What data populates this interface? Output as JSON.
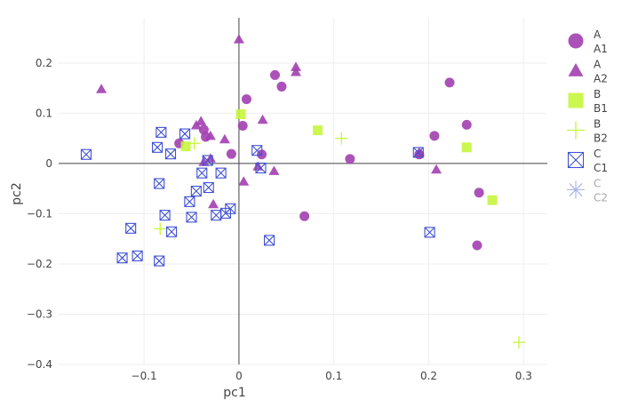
{
  "chart_data": {
    "type": "scatter",
    "title": "",
    "xlabel": "pc1",
    "ylabel": "pc2",
    "xlim": [
      -0.19,
      0.325
    ],
    "ylim": [
      -0.4,
      0.29
    ],
    "x_ticks": [
      -0.1,
      0,
      0.1,
      0.2,
      0.3
    ],
    "x_tick_labels": [
      "−0.1",
      "0",
      "0.1",
      "0.2",
      "0.3"
    ],
    "y_ticks": [
      -0.4,
      -0.3,
      -0.2,
      -0.1,
      0,
      0.1,
      0.2
    ],
    "y_tick_labels": [
      "−0.4",
      "−0.3",
      "−0.2",
      "−0.1",
      "0",
      "0.1",
      "0.2"
    ],
    "grid": true,
    "zero_lines": true,
    "legend_position": "right",
    "series": [
      {
        "name": "A A1",
        "group": "A",
        "subgroup": "A1",
        "symbol": "circle",
        "color": "#a23fb0",
        "legend_faded": false,
        "points": [
          [
            -0.063,
            0.04
          ],
          [
            -0.037,
            0.067
          ],
          [
            -0.035,
            0.053
          ],
          [
            -0.008,
            0.019
          ],
          [
            0.004,
            0.075
          ],
          [
            0.008,
            0.128
          ],
          [
            0.024,
            0.018
          ],
          [
            0.038,
            0.176
          ],
          [
            0.045,
            0.153
          ],
          [
            0.069,
            -0.105
          ],
          [
            0.117,
            0.009
          ],
          [
            0.19,
            0.018
          ],
          [
            0.206,
            0.055
          ],
          [
            0.222,
            0.161
          ],
          [
            0.24,
            0.077
          ],
          [
            0.253,
            -0.058
          ],
          [
            0.251,
            -0.163
          ]
        ]
      },
      {
        "name": "A A2",
        "group": "A",
        "subgroup": "A2",
        "symbol": "triangle-up",
        "color": "#a23fb0",
        "legend_faded": false,
        "points": [
          [
            -0.145,
            0.148
          ],
          [
            -0.045,
            0.076
          ],
          [
            -0.04,
            0.084
          ],
          [
            -0.037,
            0.003
          ],
          [
            -0.03,
            0.01
          ],
          [
            -0.03,
            0.055
          ],
          [
            -0.027,
            -0.081
          ],
          [
            -0.015,
            0.048
          ],
          [
            0,
            0.247
          ],
          [
            0.005,
            -0.036
          ],
          [
            0.02,
            -0.006
          ],
          [
            0.025,
            0.087
          ],
          [
            0.037,
            -0.015
          ],
          [
            0.06,
            0.192
          ],
          [
            0.06,
            0.182
          ],
          [
            0.19,
            0.022
          ],
          [
            0.208,
            -0.012
          ]
        ]
      },
      {
        "name": "B B1",
        "group": "B",
        "subgroup": "B1",
        "symbol": "square",
        "color": "#c6f53d",
        "legend_faded": false,
        "points": [
          [
            -0.056,
            0.034
          ],
          [
            0.002,
            0.098
          ],
          [
            0.083,
            0.066
          ],
          [
            0.24,
            0.032
          ],
          [
            0.267,
            -0.073
          ]
        ]
      },
      {
        "name": "B B2",
        "group": "B",
        "subgroup": "B2",
        "symbol": "cross",
        "color": "#c6f53d",
        "legend_faded": false,
        "points": [
          [
            -0.083,
            -0.13
          ],
          [
            -0.047,
            0.04
          ],
          [
            0.108,
            0.05
          ],
          [
            0.295,
            -0.356
          ]
        ]
      },
      {
        "name": "C C1",
        "group": "C",
        "subgroup": "C1",
        "symbol": "square-x",
        "color": "#3f51d4",
        "legend_faded": false,
        "points": [
          [
            -0.161,
            0.018
          ],
          [
            -0.123,
            -0.188
          ],
          [
            -0.114,
            -0.129
          ],
          [
            -0.107,
            -0.184
          ],
          [
            -0.086,
            0.032
          ],
          [
            -0.084,
            -0.04
          ],
          [
            -0.084,
            -0.194
          ],
          [
            -0.082,
            0.062
          ],
          [
            -0.078,
            -0.103
          ],
          [
            -0.072,
            0.019
          ],
          [
            -0.071,
            -0.136
          ],
          [
            -0.057,
            0.059
          ],
          [
            -0.052,
            -0.076
          ],
          [
            -0.05,
            -0.107
          ],
          [
            -0.045,
            -0.055
          ],
          [
            -0.039,
            -0.019
          ],
          [
            -0.033,
            0.006
          ],
          [
            -0.032,
            -0.048
          ],
          [
            -0.024,
            -0.103
          ],
          [
            -0.019,
            -0.019
          ],
          [
            -0.014,
            -0.099
          ],
          [
            -0.009,
            -0.09
          ],
          [
            0.019,
            0.026
          ],
          [
            0.023,
            -0.009
          ],
          [
            0.032,
            -0.153
          ],
          [
            0.189,
            0.022
          ],
          [
            0.201,
            -0.137
          ]
        ]
      },
      {
        "name": "C C2",
        "group": "C",
        "subgroup": "C2",
        "symbol": "asterisk",
        "color": "#3f51d4",
        "legend_faded": true,
        "points": []
      }
    ]
  }
}
